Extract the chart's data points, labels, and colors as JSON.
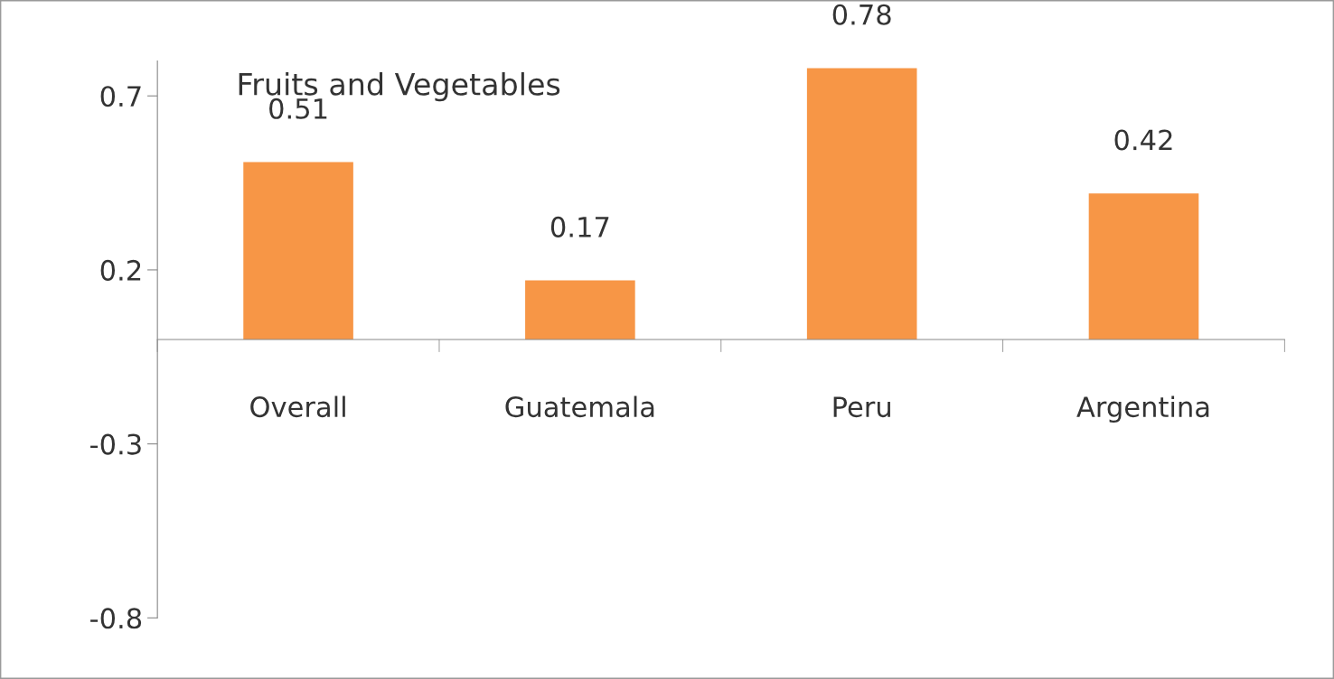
{
  "chart_data": {
    "type": "bar",
    "title": "Fruits and Vegetables",
    "categories": [
      "Overall",
      "Guatemala",
      "Peru",
      "Argentina"
    ],
    "values": [
      0.51,
      0.17,
      0.78,
      0.42
    ],
    "color": "#f79646",
    "ylim": [
      -0.8,
      0.8
    ],
    "yticks": [
      -0.8,
      -0.3,
      0.2,
      0.7
    ],
    "grid": false,
    "data_labels": true
  }
}
